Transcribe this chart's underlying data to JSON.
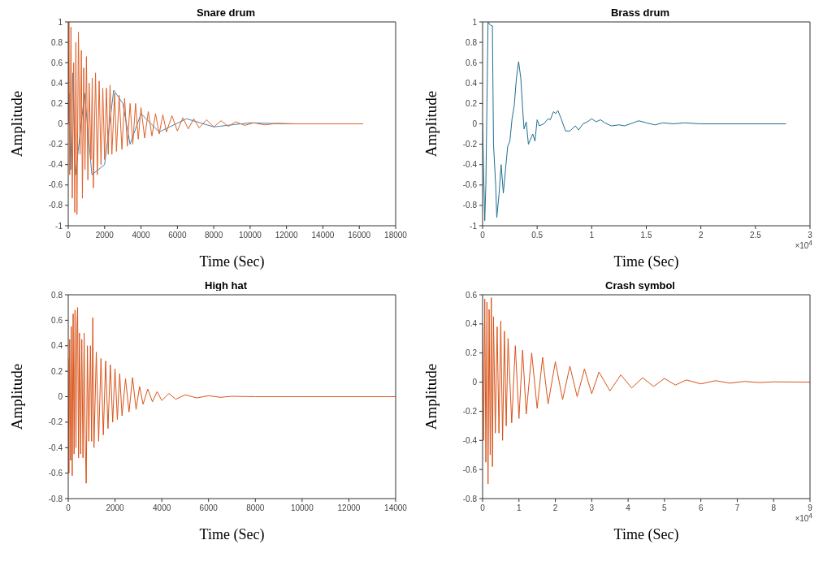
{
  "chart_data": [
    {
      "type": "line",
      "title": "Snare drum",
      "xlabel": "Time (Sec)",
      "ylabel": "Amplitude",
      "xlim": [
        0,
        18000
      ],
      "xticks": [
        0,
        2000,
        4000,
        6000,
        8000,
        10000,
        12000,
        14000,
        16000,
        18000
      ],
      "ylim": [
        -1,
        1
      ],
      "yticks": [
        -1,
        -0.8,
        -0.6,
        -0.4,
        -0.2,
        0,
        0.2,
        0.4,
        0.6,
        0.8,
        1
      ],
      "series": [
        {
          "color": "#3f86b0",
          "x": [
            0,
            60,
            130,
            250,
            400,
            900,
            1300,
            2000,
            2500,
            3000,
            3400,
            4000,
            5000,
            6500,
            8000,
            10000,
            12000,
            16200
          ],
          "values": [
            0,
            0.3,
            -0.45,
            0.5,
            -0.5,
            0.3,
            -0.5,
            -0.4,
            0.33,
            0.2,
            -0.2,
            0.1,
            -0.08,
            0.05,
            -0.03,
            0.01,
            0,
            0
          ]
        },
        {
          "color": "#e0622a",
          "x": [
            0,
            40,
            80,
            150,
            220,
            300,
            360,
            420,
            480,
            560,
            650,
            720,
            780,
            850,
            920,
            1000,
            1080,
            1150,
            1250,
            1320,
            1380,
            1500,
            1600,
            1700,
            1800,
            1900,
            2000,
            2100,
            2200,
            2300,
            2400,
            2550,
            2650,
            2800,
            2950,
            3100,
            3250,
            3400,
            3550,
            3700,
            3850,
            4000,
            4200,
            4400,
            4600,
            4800,
            5000,
            5200,
            5400,
            5700,
            6000,
            6300,
            6600,
            6900,
            7200,
            7600,
            8000,
            8400,
            8800,
            9200,
            9700,
            10200,
            10800,
            11500,
            12500,
            14000,
            16200
          ],
          "values": [
            0,
            1,
            -0.5,
            0.95,
            -0.73,
            0.6,
            -0.87,
            0.8,
            -0.89,
            0.9,
            -0.3,
            0.72,
            -0.73,
            0.55,
            -0.45,
            0.66,
            -0.55,
            0.4,
            -0.35,
            0.45,
            -0.63,
            0.5,
            -0.5,
            0.42,
            -0.4,
            0.35,
            -0.35,
            0.35,
            -0.3,
            0.38,
            -0.3,
            0.3,
            -0.27,
            0.28,
            -0.25,
            0.25,
            -0.22,
            0.2,
            -0.2,
            0.2,
            -0.15,
            0.16,
            -0.14,
            0.12,
            -0.12,
            0.1,
            -0.1,
            0.09,
            -0.08,
            0.08,
            -0.07,
            0.06,
            -0.05,
            0.05,
            -0.04,
            0.04,
            -0.03,
            0.03,
            -0.025,
            0.02,
            -0.015,
            0.01,
            -0.01,
            0.005,
            0,
            0,
            0
          ]
        }
      ]
    },
    {
      "type": "line",
      "title": "Brass drum",
      "xlabel": "Time (Sec)",
      "ylabel": "Amplitude",
      "annotations": [
        "×10$^{4}$"
      ],
      "xlim": [
        0,
        3
      ],
      "xticks": [
        0,
        0.5,
        1,
        1.5,
        2,
        2.5,
        3
      ],
      "ylim": [
        -1,
        1
      ],
      "yticks": [
        -1,
        -0.8,
        -0.6,
        -0.4,
        -0.2,
        0,
        0.2,
        0.4,
        0.6,
        0.8,
        1
      ],
      "series": [
        {
          "color": "#1f6f8f",
          "x": [
            0,
            0.01,
            0.02,
            0.03,
            0.05,
            0.07,
            0.09,
            0.1,
            0.12,
            0.13,
            0.15,
            0.17,
            0.19,
            0.21,
            0.23,
            0.25,
            0.27,
            0.29,
            0.31,
            0.33,
            0.35,
            0.37,
            0.38,
            0.4,
            0.42,
            0.44,
            0.46,
            0.48,
            0.5,
            0.52,
            0.56,
            0.6,
            0.62,
            0.65,
            0.67,
            0.69,
            0.72,
            0.76,
            0.8,
            0.85,
            0.88,
            0.92,
            0.96,
            1.0,
            1.04,
            1.08,
            1.12,
            1.18,
            1.25,
            1.3,
            1.38,
            1.43,
            1.5,
            1.58,
            1.65,
            1.75,
            1.85,
            2.0,
            2.3,
            2.78
          ],
          "values": [
            0,
            -0.5,
            -0.95,
            -0.6,
            1,
            0.97,
            0.96,
            -0.2,
            -0.6,
            -0.92,
            -0.7,
            -0.4,
            -0.68,
            -0.45,
            -0.22,
            -0.17,
            0.05,
            0.18,
            0.45,
            0.61,
            0.45,
            0.1,
            -0.05,
            0.02,
            -0.2,
            -0.15,
            -0.1,
            -0.17,
            0.04,
            -0.02,
            0,
            0.05,
            0.04,
            0.12,
            0.1,
            0.13,
            0.05,
            -0.07,
            -0.07,
            -0.02,
            -0.06,
            0,
            0.02,
            0.05,
            0.02,
            0.04,
            0.01,
            -0.02,
            -0.01,
            -0.02,
            0.01,
            0.03,
            0.01,
            -0.01,
            0.01,
            0,
            0.01,
            0,
            0,
            0
          ]
        }
      ]
    },
    {
      "type": "line",
      "title": "High hat",
      "xlabel": "Time (Sec)",
      "ylabel": "Amplitude",
      "xlim": [
        0,
        14000
      ],
      "xticks": [
        0,
        2000,
        4000,
        6000,
        8000,
        10000,
        12000,
        14000
      ],
      "ylim": [
        -0.8,
        0.8
      ],
      "yticks": [
        -0.8,
        -0.6,
        -0.4,
        -0.2,
        0,
        0.2,
        0.4,
        0.6,
        0.8
      ],
      "series": [
        {
          "color": "#d95319",
          "x": [
            0,
            30,
            60,
            100,
            130,
            170,
            210,
            250,
            290,
            330,
            370,
            400,
            440,
            480,
            530,
            580,
            630,
            680,
            720,
            770,
            820,
            880,
            950,
            1000,
            1050,
            1100,
            1200,
            1300,
            1400,
            1500,
            1600,
            1700,
            1800,
            1900,
            2000,
            2100,
            2200,
            2300,
            2450,
            2600,
            2750,
            2900,
            3050,
            3200,
            3400,
            3600,
            3800,
            4000,
            4300,
            4600,
            5000,
            5500,
            6000,
            6500,
            7000,
            8000,
            10000,
            14000
          ],
          "values": [
            0.3,
            -0.6,
            0.45,
            -0.5,
            0.55,
            -0.62,
            0.65,
            -0.45,
            0.68,
            -0.4,
            0.55,
            0.7,
            -0.48,
            0.5,
            -0.45,
            0.45,
            -0.48,
            0.5,
            -0.3,
            -0.68,
            0.4,
            -0.35,
            0.4,
            -0.35,
            0.62,
            -0.4,
            0.35,
            -0.35,
            0.3,
            -0.3,
            0.28,
            -0.25,
            0.25,
            -0.2,
            0.22,
            -0.18,
            0.18,
            -0.15,
            0.14,
            -0.12,
            0.15,
            -0.1,
            0.08,
            -0.06,
            0.06,
            -0.04,
            0.04,
            -0.03,
            0.025,
            -0.02,
            0.015,
            -0.01,
            0.008,
            -0.005,
            0.003,
            0,
            0,
            0
          ]
        }
      ]
    },
    {
      "type": "line",
      "title": "Crash symbol",
      "xlabel": "Time (Sec)",
      "ylabel": "Amplitude",
      "annotations": [
        "×10$^{4}$"
      ],
      "xlim": [
        0,
        9
      ],
      "xticks": [
        0,
        1,
        2,
        3,
        4,
        5,
        6,
        7,
        8,
        9
      ],
      "ylim": [
        -0.8,
        0.6
      ],
      "yticks": [
        -0.8,
        -0.6,
        -0.4,
        -0.2,
        0,
        0.2,
        0.4,
        0.6
      ],
      "series": [
        {
          "color": "#d95319",
          "x": [
            0,
            0.03,
            0.06,
            0.09,
            0.12,
            0.15,
            0.18,
            0.21,
            0.24,
            0.27,
            0.3,
            0.35,
            0.4,
            0.45,
            0.5,
            0.55,
            0.6,
            0.65,
            0.7,
            0.8,
            0.9,
            1.0,
            1.1,
            1.2,
            1.35,
            1.5,
            1.65,
            1.8,
            2.0,
            2.2,
            2.4,
            2.6,
            2.8,
            3.0,
            3.2,
            3.5,
            3.8,
            4.1,
            4.4,
            4.7,
            5.0,
            5.3,
            5.6,
            6.0,
            6.4,
            6.8,
            7.2,
            7.6,
            8.0,
            9
          ],
          "values": [
            0.4,
            -0.4,
            0.57,
            -0.55,
            0.55,
            -0.7,
            0.5,
            -0.5,
            0.58,
            -0.58,
            0.45,
            -0.35,
            0.38,
            -0.35,
            0.42,
            -0.4,
            0.35,
            -0.3,
            0.3,
            -0.28,
            0.25,
            -0.25,
            0.22,
            -0.22,
            0.2,
            -0.18,
            0.17,
            -0.15,
            0.14,
            -0.12,
            0.11,
            -0.1,
            0.09,
            -0.08,
            0.07,
            -0.06,
            0.05,
            -0.04,
            0.03,
            -0.03,
            0.025,
            -0.02,
            0.015,
            -0.012,
            0.01,
            -0.007,
            0.005,
            -0.003,
            0.002,
            0
          ]
        }
      ]
    }
  ]
}
